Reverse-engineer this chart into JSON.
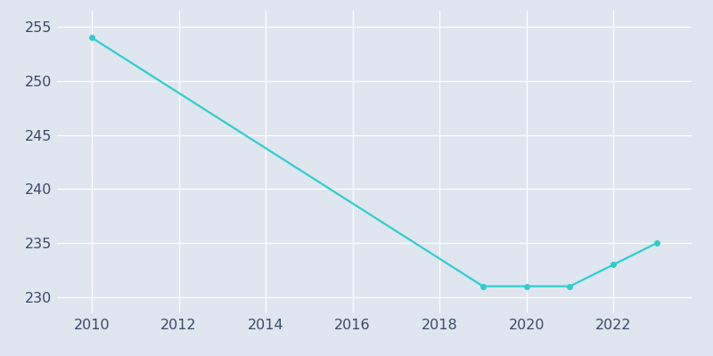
{
  "years": [
    2010,
    2019,
    2020,
    2021,
    2022,
    2023
  ],
  "population": [
    254,
    231,
    231,
    231,
    233,
    235
  ],
  "line_color": "#2ECECE",
  "marker_color": "#2ECECE",
  "background_color": "#DFE6F0",
  "grid_color": "#FFFFFF",
  "text_color": "#3A4A6A",
  "xlim": [
    2009.2,
    2023.8
  ],
  "ylim": [
    228.5,
    256.5
  ],
  "yticks": [
    230,
    235,
    240,
    245,
    250,
    255
  ],
  "xticks": [
    2010,
    2012,
    2014,
    2016,
    2018,
    2020,
    2022
  ],
  "marker_size": 4,
  "line_width": 1.6,
  "tick_labelsize": 11.5
}
